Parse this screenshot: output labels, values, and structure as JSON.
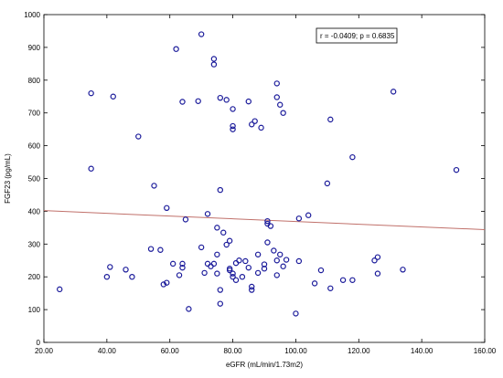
{
  "chart_data": {
    "type": "scatter",
    "title": "",
    "xlabel": "eGFR (mL/min/1.73m2)",
    "ylabel": "FGF23 (pg/mL)",
    "xlim": [
      20,
      160
    ],
    "ylim": [
      0,
      1000
    ],
    "x_ticks": [
      20,
      40,
      60,
      80,
      100,
      120,
      140,
      160
    ],
    "x_tick_labels": [
      "20.00",
      "40.00",
      "60.00",
      "80.00",
      "100.00",
      "120.00",
      "140.00",
      "160.00"
    ],
    "y_ticks": [
      0,
      100,
      200,
      300,
      400,
      500,
      600,
      700,
      800,
      900,
      1000
    ],
    "y_tick_labels": [
      "0",
      "100",
      "200",
      "300",
      "400",
      "500",
      "600",
      "700",
      "800",
      "900",
      "1000"
    ],
    "grid": false,
    "annotation": "r = -0.0409; p = 0.6835",
    "annotation_placement": "top-right",
    "marker_color": "#1a1a9a",
    "regression_line": {
      "color": "#c0706a",
      "x": [
        20,
        160
      ],
      "y": [
        402,
        344
      ]
    },
    "points": [
      {
        "x": 25,
        "y": 162
      },
      {
        "x": 35,
        "y": 760
      },
      {
        "x": 35,
        "y": 530
      },
      {
        "x": 40,
        "y": 200
      },
      {
        "x": 41,
        "y": 230
      },
      {
        "x": 42,
        "y": 750
      },
      {
        "x": 46,
        "y": 222
      },
      {
        "x": 48,
        "y": 200
      },
      {
        "x": 50,
        "y": 628
      },
      {
        "x": 54,
        "y": 285
      },
      {
        "x": 55,
        "y": 478
      },
      {
        "x": 57,
        "y": 282
      },
      {
        "x": 58,
        "y": 177
      },
      {
        "x": 59,
        "y": 410
      },
      {
        "x": 59,
        "y": 182
      },
      {
        "x": 61,
        "y": 240
      },
      {
        "x": 62,
        "y": 895
      },
      {
        "x": 63,
        "y": 205
      },
      {
        "x": 64,
        "y": 734
      },
      {
        "x": 64,
        "y": 240
      },
      {
        "x": 64,
        "y": 228
      },
      {
        "x": 65,
        "y": 375
      },
      {
        "x": 66,
        "y": 102
      },
      {
        "x": 69,
        "y": 736
      },
      {
        "x": 70,
        "y": 940
      },
      {
        "x": 70,
        "y": 290
      },
      {
        "x": 71,
        "y": 212
      },
      {
        "x": 72,
        "y": 392
      },
      {
        "x": 72,
        "y": 240
      },
      {
        "x": 73,
        "y": 232
      },
      {
        "x": 74,
        "y": 240
      },
      {
        "x": 74,
        "y": 865
      },
      {
        "x": 74,
        "y": 848
      },
      {
        "x": 75,
        "y": 350
      },
      {
        "x": 75,
        "y": 268
      },
      {
        "x": 75,
        "y": 210
      },
      {
        "x": 76,
        "y": 746
      },
      {
        "x": 76,
        "y": 465
      },
      {
        "x": 76,
        "y": 118
      },
      {
        "x": 76,
        "y": 160
      },
      {
        "x": 77,
        "y": 335
      },
      {
        "x": 78,
        "y": 740
      },
      {
        "x": 78,
        "y": 298
      },
      {
        "x": 79,
        "y": 310
      },
      {
        "x": 79,
        "y": 225
      },
      {
        "x": 79,
        "y": 220
      },
      {
        "x": 80,
        "y": 210
      },
      {
        "x": 80,
        "y": 200
      },
      {
        "x": 80,
        "y": 712
      },
      {
        "x": 80,
        "y": 660
      },
      {
        "x": 80,
        "y": 650
      },
      {
        "x": 81,
        "y": 190
      },
      {
        "x": 81,
        "y": 242
      },
      {
        "x": 82,
        "y": 250
      },
      {
        "x": 83,
        "y": 200
      },
      {
        "x": 84,
        "y": 248
      },
      {
        "x": 85,
        "y": 735
      },
      {
        "x": 85,
        "y": 228
      },
      {
        "x": 86,
        "y": 665
      },
      {
        "x": 86,
        "y": 170
      },
      {
        "x": 86,
        "y": 160
      },
      {
        "x": 87,
        "y": 675
      },
      {
        "x": 88,
        "y": 212
      },
      {
        "x": 88,
        "y": 268
      },
      {
        "x": 89,
        "y": 655
      },
      {
        "x": 90,
        "y": 238
      },
      {
        "x": 90,
        "y": 225
      },
      {
        "x": 91,
        "y": 370
      },
      {
        "x": 91,
        "y": 362
      },
      {
        "x": 91,
        "y": 305
      },
      {
        "x": 92,
        "y": 355
      },
      {
        "x": 93,
        "y": 280
      },
      {
        "x": 94,
        "y": 250
      },
      {
        "x": 94,
        "y": 205
      },
      {
        "x": 94,
        "y": 790
      },
      {
        "x": 94,
        "y": 748
      },
      {
        "x": 95,
        "y": 725
      },
      {
        "x": 95,
        "y": 268
      },
      {
        "x": 96,
        "y": 700
      },
      {
        "x": 96,
        "y": 232
      },
      {
        "x": 97,
        "y": 252
      },
      {
        "x": 100,
        "y": 88
      },
      {
        "x": 101,
        "y": 378
      },
      {
        "x": 101,
        "y": 248
      },
      {
        "x": 104,
        "y": 388
      },
      {
        "x": 106,
        "y": 180
      },
      {
        "x": 108,
        "y": 220
      },
      {
        "x": 110,
        "y": 485
      },
      {
        "x": 111,
        "y": 680
      },
      {
        "x": 111,
        "y": 165
      },
      {
        "x": 115,
        "y": 190
      },
      {
        "x": 118,
        "y": 565
      },
      {
        "x": 118,
        "y": 190
      },
      {
        "x": 125,
        "y": 250
      },
      {
        "x": 126,
        "y": 260
      },
      {
        "x": 126,
        "y": 210
      },
      {
        "x": 131,
        "y": 765
      },
      {
        "x": 134,
        "y": 222
      },
      {
        "x": 151,
        "y": 526
      }
    ]
  }
}
